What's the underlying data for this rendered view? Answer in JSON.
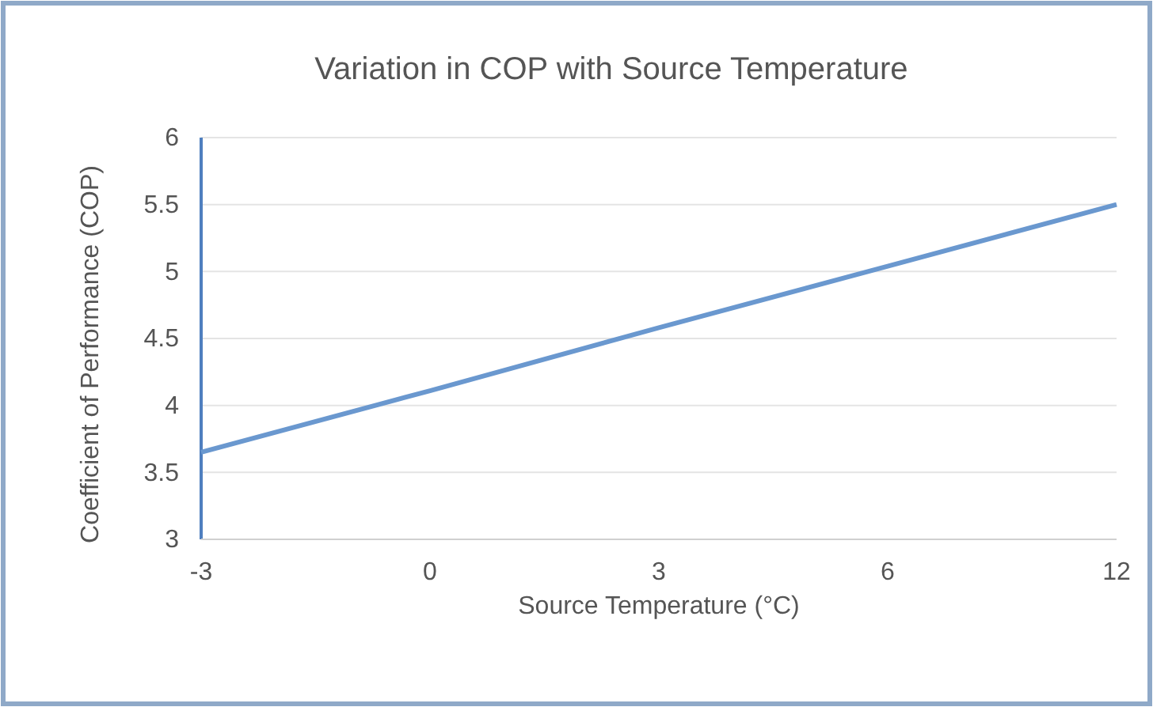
{
  "chart_data": {
    "type": "line",
    "title": "Variation in COP with Source Temperature",
    "xlabel": "Source Temperature (°C)",
    "ylabel": "Coefficient of Performance (COP)",
    "categories": [
      "-3",
      "0",
      "3",
      "6",
      "12"
    ],
    "series": [
      {
        "color": "#6a98cf",
        "values": [
          3.65,
          4.11,
          4.58,
          5.04,
          5.5
        ]
      }
    ],
    "ylim": [
      3,
      6
    ],
    "yticks": [
      3,
      3.5,
      4,
      4.5,
      5,
      5.5,
      6
    ],
    "grid": "y",
    "marker": "none",
    "line_style": "solid"
  }
}
